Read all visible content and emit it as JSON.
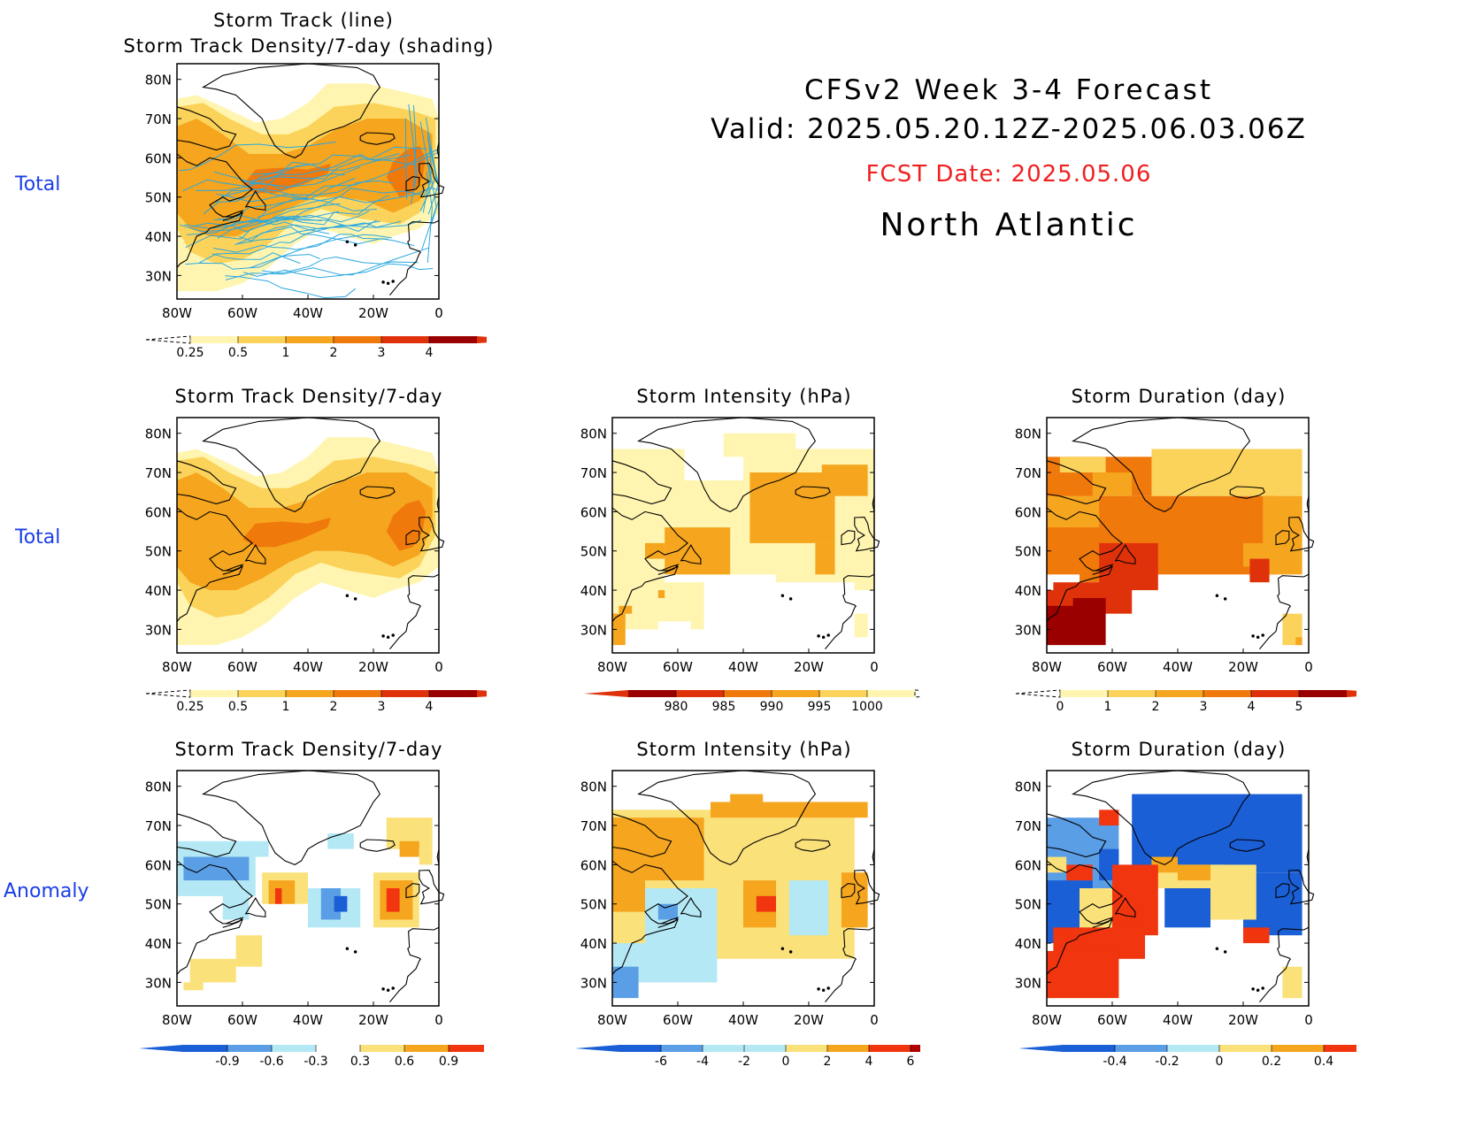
{
  "header": {
    "line1": "CFSv2 Week 3-4 Forecast",
    "line2": "Valid: 2025.05.20.12Z-2025.06.03.06Z",
    "fcst": "FCST Date: 2025.05.06",
    "region": "North Atlantic"
  },
  "row_labels": [
    "Total",
    "Total",
    "Anomaly"
  ],
  "axes": {
    "lat_ticks": [
      "80N",
      "70N",
      "60N",
      "50N",
      "40N",
      "30N"
    ],
    "lon_ticks": [
      "80W",
      "60W",
      "40W",
      "20W",
      "0"
    ]
  },
  "colors": {
    "warm": [
      "#fff5b0",
      "#fbd35a",
      "#f5a51e",
      "#f0790c",
      "#e0320a",
      "#9b0000"
    ],
    "anomaly_neg": [
      "#1a5fd6",
      "#5a9ee6",
      "#b4e8f5"
    ],
    "anomaly_pos": [
      "#fbe17a",
      "#f5a51e",
      "#f0350f"
    ],
    "track_line": "#2aa8e0",
    "map_outline": "#000000"
  },
  "panels": {
    "p1": {
      "title1": "Storm Track (line)",
      "title2": "Storm Track Density/7-day (shading)",
      "colorbar": [
        "0.25",
        "0.5",
        "1",
        "2",
        "3",
        "4"
      ]
    },
    "p2": {
      "title": "Storm Track Density/7-day",
      "colorbar": [
        "0.25",
        "0.5",
        "1",
        "2",
        "3",
        "4"
      ]
    },
    "p3": {
      "title": "Storm Intensity (hPa)",
      "colorbar": [
        "980",
        "985",
        "990",
        "995",
        "1000"
      ]
    },
    "p4": {
      "title": "Storm Duration (day)",
      "colorbar": [
        "0",
        "1",
        "2",
        "3",
        "4",
        "5"
      ]
    },
    "p5": {
      "title": "Storm Track Density/7-day",
      "colorbar": [
        "-0.9",
        "-0.6",
        "-0.3",
        "0.3",
        "0.6",
        "0.9"
      ]
    },
    "p6": {
      "title": "Storm Intensity (hPa)",
      "colorbar": [
        "-6",
        "-4",
        "-2",
        "0",
        "2",
        "4",
        "6"
      ]
    },
    "p7": {
      "title": "Storm Duration (day)",
      "colorbar": [
        "-0.4",
        "-0.2",
        "0",
        "0.2",
        "0.4"
      ]
    }
  }
}
